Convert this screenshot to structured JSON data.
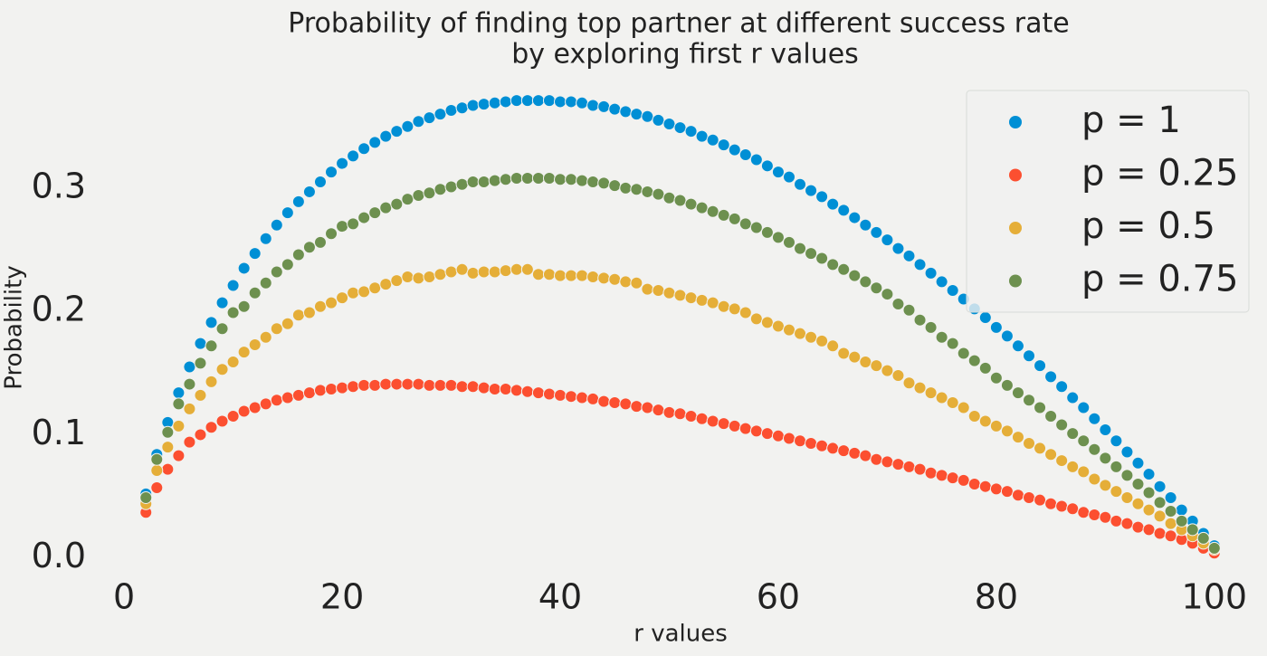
{
  "chart_data": {
    "type": "scatter",
    "title": [
      "Probability of finding top partner at different success rate",
      "by exploring first r values"
    ],
    "x_label": "r values",
    "y_label": "Probability",
    "x": [
      2,
      3,
      4,
      5,
      6,
      7,
      8,
      9,
      10,
      11,
      12,
      13,
      14,
      15,
      16,
      17,
      18,
      19,
      20,
      21,
      22,
      23,
      24,
      25,
      26,
      27,
      28,
      29,
      30,
      31,
      32,
      33,
      34,
      35,
      36,
      37,
      38,
      39,
      40,
      41,
      42,
      43,
      44,
      45,
      46,
      47,
      48,
      49,
      50,
      51,
      52,
      53,
      54,
      55,
      56,
      57,
      58,
      59,
      60,
      61,
      62,
      63,
      64,
      65,
      66,
      67,
      68,
      69,
      70,
      71,
      72,
      73,
      74,
      75,
      76,
      77,
      78,
      79,
      80,
      81,
      82,
      83,
      84,
      85,
      86,
      87,
      88,
      89,
      90,
      91,
      92,
      93,
      94,
      95,
      96,
      97,
      98,
      99,
      100
    ],
    "series": [
      {
        "name": "p = 1",
        "color": "#008fd5",
        "values": [
          0.052,
          0.084,
          0.11,
          0.134,
          0.155,
          0.174,
          0.191,
          0.207,
          0.221,
          0.235,
          0.247,
          0.259,
          0.27,
          0.28,
          0.289,
          0.297,
          0.305,
          0.313,
          0.32,
          0.326,
          0.332,
          0.337,
          0.342,
          0.346,
          0.35,
          0.354,
          0.357,
          0.36,
          0.363,
          0.365,
          0.367,
          0.368,
          0.369,
          0.37,
          0.371,
          0.371,
          0.371,
          0.371,
          0.37,
          0.37,
          0.369,
          0.367,
          0.366,
          0.364,
          0.362,
          0.36,
          0.358,
          0.355,
          0.352,
          0.349,
          0.346,
          0.342,
          0.339,
          0.335,
          0.331,
          0.327,
          0.323,
          0.318,
          0.313,
          0.309,
          0.303,
          0.298,
          0.293,
          0.287,
          0.282,
          0.276,
          0.27,
          0.264,
          0.258,
          0.251,
          0.245,
          0.238,
          0.231,
          0.224,
          0.217,
          0.21,
          0.202,
          0.195,
          0.187,
          0.18,
          0.172,
          0.164,
          0.156,
          0.147,
          0.139,
          0.13,
          0.122,
          0.113,
          0.104,
          0.095,
          0.086,
          0.077,
          0.068,
          0.058,
          0.049,
          0.039,
          0.03,
          0.02,
          0.01
        ]
      },
      {
        "name": "p = 0.25",
        "color": "#fc4f30",
        "values": [
          0.037,
          0.057,
          0.072,
          0.083,
          0.094,
          0.1,
          0.106,
          0.111,
          0.115,
          0.119,
          0.122,
          0.125,
          0.128,
          0.13,
          0.132,
          0.134,
          0.136,
          0.137,
          0.138,
          0.139,
          0.14,
          0.14,
          0.141,
          0.141,
          0.141,
          0.141,
          0.14,
          0.14,
          0.14,
          0.139,
          0.139,
          0.138,
          0.137,
          0.137,
          0.136,
          0.135,
          0.134,
          0.133,
          0.132,
          0.131,
          0.13,
          0.129,
          0.127,
          0.126,
          0.125,
          0.123,
          0.122,
          0.12,
          0.118,
          0.117,
          0.115,
          0.113,
          0.111,
          0.109,
          0.107,
          0.105,
          0.103,
          0.101,
          0.099,
          0.097,
          0.095,
          0.093,
          0.091,
          0.089,
          0.087,
          0.085,
          0.083,
          0.08,
          0.078,
          0.076,
          0.074,
          0.072,
          0.069,
          0.067,
          0.065,
          0.063,
          0.06,
          0.058,
          0.056,
          0.054,
          0.051,
          0.049,
          0.047,
          0.044,
          0.042,
          0.04,
          0.037,
          0.035,
          0.033,
          0.03,
          0.028,
          0.025,
          0.023,
          0.02,
          0.018,
          0.015,
          0.012,
          0.008,
          0.004
        ]
      },
      {
        "name": "p = 0.5",
        "color": "#e5ae38",
        "values": [
          0.044,
          0.071,
          0.09,
          0.107,
          0.121,
          0.132,
          0.143,
          0.153,
          0.159,
          0.167,
          0.173,
          0.179,
          0.186,
          0.19,
          0.197,
          0.199,
          0.204,
          0.207,
          0.211,
          0.215,
          0.216,
          0.219,
          0.222,
          0.225,
          0.228,
          0.227,
          0.228,
          0.23,
          0.232,
          0.234,
          0.231,
          0.232,
          0.232,
          0.233,
          0.234,
          0.234,
          0.23,
          0.23,
          0.229,
          0.229,
          0.229,
          0.228,
          0.227,
          0.226,
          0.224,
          0.223,
          0.218,
          0.217,
          0.215,
          0.213,
          0.211,
          0.209,
          0.207,
          0.204,
          0.202,
          0.199,
          0.194,
          0.191,
          0.188,
          0.185,
          0.182,
          0.179,
          0.176,
          0.172,
          0.166,
          0.163,
          0.159,
          0.156,
          0.152,
          0.148,
          0.142,
          0.138,
          0.134,
          0.13,
          0.126,
          0.122,
          0.115,
          0.111,
          0.107,
          0.103,
          0.098,
          0.093,
          0.089,
          0.084,
          0.079,
          0.074,
          0.07,
          0.064,
          0.059,
          0.054,
          0.049,
          0.044,
          0.039,
          0.034,
          0.028,
          0.023,
          0.018,
          0.012,
          0.007
        ]
      },
      {
        "name": "p = 0.75",
        "color": "#6d904f",
        "values": [
          0.049,
          0.08,
          0.102,
          0.125,
          0.141,
          0.158,
          0.172,
          0.186,
          0.199,
          0.204,
          0.215,
          0.223,
          0.232,
          0.238,
          0.246,
          0.252,
          0.256,
          0.263,
          0.269,
          0.271,
          0.276,
          0.28,
          0.284,
          0.287,
          0.291,
          0.294,
          0.296,
          0.299,
          0.301,
          0.303,
          0.305,
          0.305,
          0.306,
          0.307,
          0.308,
          0.308,
          0.308,
          0.308,
          0.307,
          0.307,
          0.306,
          0.305,
          0.304,
          0.302,
          0.3,
          0.299,
          0.297,
          0.295,
          0.292,
          0.29,
          0.287,
          0.284,
          0.281,
          0.278,
          0.275,
          0.271,
          0.268,
          0.264,
          0.26,
          0.256,
          0.251,
          0.247,
          0.243,
          0.238,
          0.234,
          0.229,
          0.224,
          0.219,
          0.214,
          0.206,
          0.201,
          0.193,
          0.187,
          0.179,
          0.174,
          0.166,
          0.16,
          0.154,
          0.146,
          0.14,
          0.134,
          0.128,
          0.122,
          0.115,
          0.108,
          0.101,
          0.095,
          0.088,
          0.081,
          0.074,
          0.067,
          0.06,
          0.053,
          0.045,
          0.038,
          0.03,
          0.023,
          0.016,
          0.008
        ]
      }
    ],
    "xlim": [
      -3,
      104
    ],
    "ylim": [
      -0.02,
      0.385
    ],
    "xticks": [
      0,
      20,
      40,
      60,
      80,
      100
    ],
    "yticks": [
      {
        "value": 0,
        "label": "0.0"
      },
      0.1,
      0.2,
      0.3
    ],
    "grid": false,
    "legend": "upper right"
  }
}
